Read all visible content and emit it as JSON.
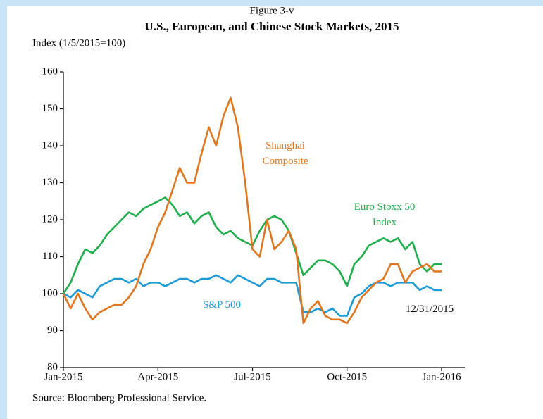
{
  "chart_data": {
    "type": "line",
    "figure_label": "Figure 3-v",
    "title": "U.S., European, and Chinese Stock Markets, 2015",
    "y_label": "Index (1/5/2015=100)",
    "source": "Source: Bloomberg Professional Service.",
    "categories": [
      "Jan-2015",
      null,
      null,
      null,
      null,
      null,
      null,
      null,
      null,
      null,
      null,
      null,
      null,
      "Apr-2015",
      null,
      null,
      null,
      null,
      null,
      null,
      null,
      null,
      null,
      null,
      null,
      null,
      "Jul-2015",
      null,
      null,
      null,
      null,
      null,
      null,
      null,
      null,
      null,
      null,
      null,
      null,
      "Oct-2015",
      null,
      null,
      null,
      null,
      null,
      null,
      null,
      null,
      null,
      null,
      null,
      null,
      "Jan-2016"
    ],
    "ylim": [
      80,
      160
    ],
    "yticks": [
      80,
      90,
      100,
      110,
      120,
      130,
      140,
      150,
      160
    ],
    "series": [
      {
        "name": "S&P 500",
        "color": "#1e9ad6",
        "values": [
          100,
          99,
          101,
          100,
          99,
          102,
          103,
          104,
          104,
          103,
          104,
          102,
          103,
          103,
          102,
          103,
          104,
          104,
          103,
          104,
          104,
          105,
          104,
          103,
          105,
          104,
          103,
          102,
          104,
          104,
          103,
          103,
          103,
          95,
          95,
          96,
          95,
          96,
          94,
          94,
          99,
          100,
          102,
          103,
          103,
          102,
          103,
          103,
          103,
          101,
          102,
          101,
          101
        ]
      },
      {
        "name": "Euro Stoxx 50 Index",
        "color": "#1fae4c",
        "values": [
          100,
          103,
          108,
          112,
          111,
          113,
          116,
          118,
          120,
          122,
          121,
          123,
          124,
          125,
          126,
          124,
          121,
          122,
          119,
          121,
          122,
          118,
          116,
          117,
          115,
          114,
          113,
          117,
          120,
          121,
          120,
          117,
          111,
          105,
          107,
          109,
          109,
          108,
          106,
          102,
          108,
          110,
          113,
          114,
          115,
          114,
          115,
          112,
          114,
          108,
          106,
          108,
          108
        ]
      },
      {
        "name": "Shanghai Composite",
        "color": "#e0761f",
        "values": [
          100,
          96,
          100,
          96,
          93,
          95,
          96,
          97,
          97,
          99,
          102,
          108,
          112,
          118,
          122,
          128,
          134,
          130,
          130,
          138,
          145,
          140,
          148,
          153,
          145,
          130,
          112,
          110,
          120,
          112,
          114,
          117,
          112,
          92,
          96,
          98,
          94,
          93,
          93,
          92,
          95,
          99,
          101,
          103,
          104,
          108,
          108,
          103,
          106,
          107,
          108,
          106,
          106
        ]
      }
    ],
    "annotations": [
      {
        "lines": [
          "Shanghai",
          "Composite"
        ],
        "color": "#e0761f"
      },
      {
        "lines": [
          "Euro Stoxx 50",
          "Index"
        ],
        "color": "#1fae4c"
      },
      {
        "lines": [
          "S&P 500"
        ],
        "color": "#1e9ad6"
      },
      {
        "lines": [
          "12/31/2015"
        ],
        "color": "#000000"
      }
    ],
    "grid": false
  }
}
